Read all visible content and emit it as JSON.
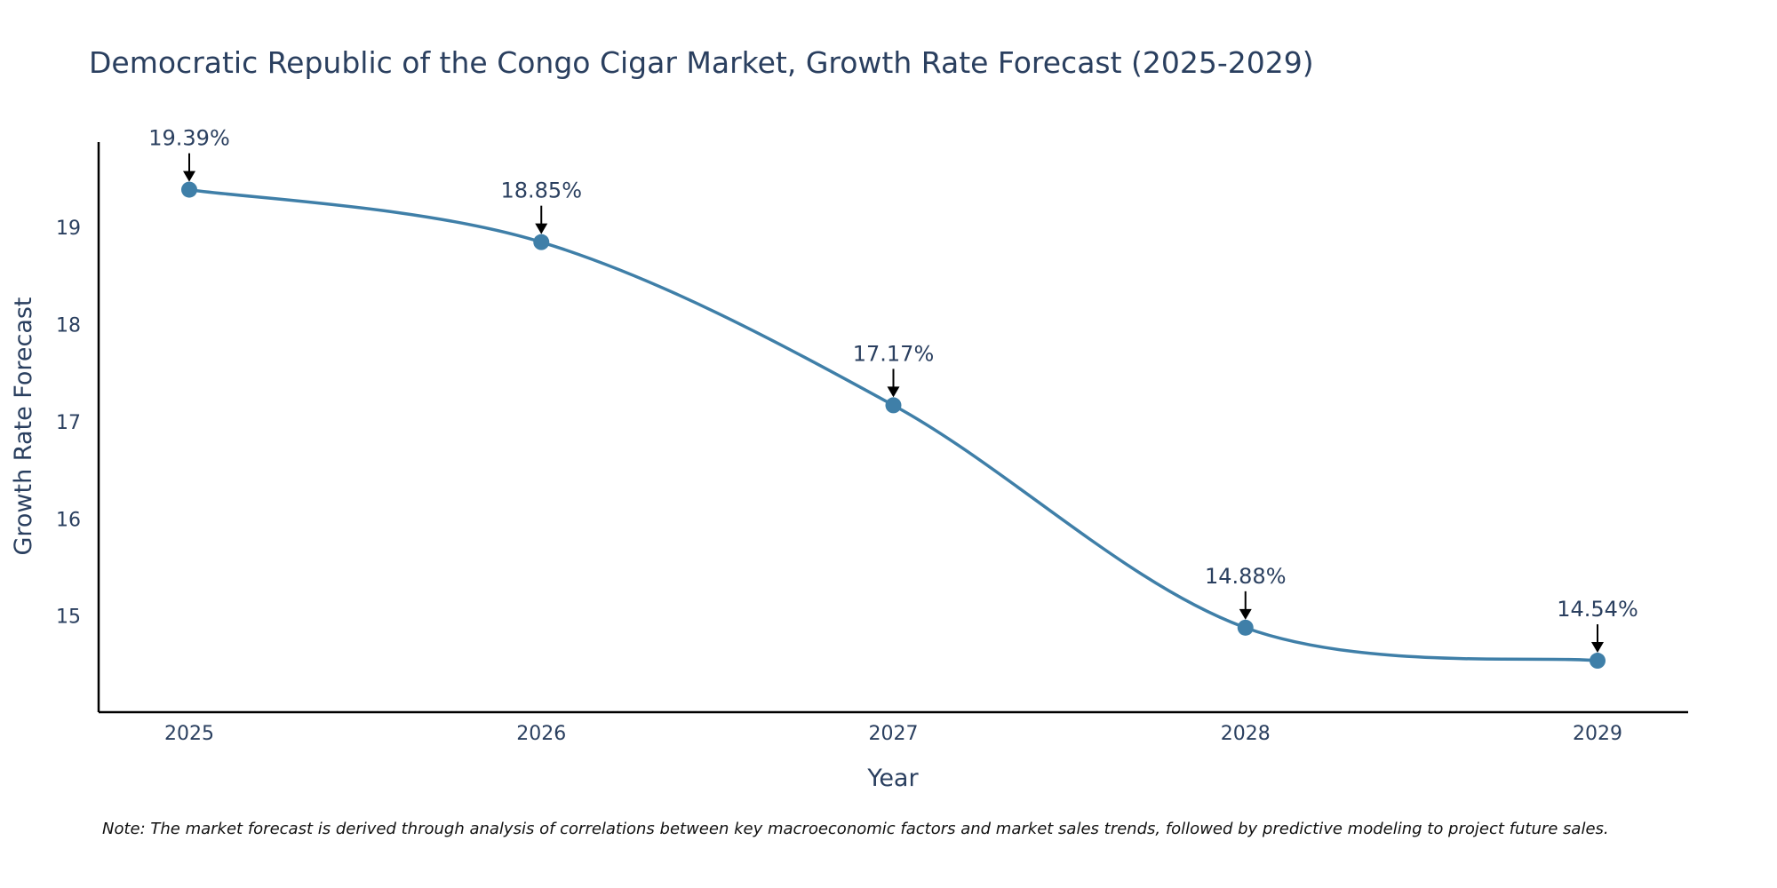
{
  "chart_data": {
    "type": "line",
    "title": "Democratic Republic of the Congo Cigar Market, Growth Rate Forecast (2025-2029)",
    "xlabel": "Year",
    "ylabel": "Growth Rate Forecast",
    "categories": [
      "2025",
      "2026",
      "2027",
      "2028",
      "2029"
    ],
    "series": [
      {
        "name": "Growth Rate Forecast",
        "values": [
          19.39,
          18.85,
          17.17,
          14.88,
          14.54
        ],
        "color": "#3f7fa8"
      }
    ],
    "data_labels": [
      "19.39%",
      "18.85%",
      "17.17%",
      "14.88%",
      "14.54%"
    ],
    "yticks": [
      15,
      16,
      17,
      18,
      19
    ],
    "ylim": [
      14.01,
      19.88
    ],
    "line_shape": "spline",
    "grid": false,
    "note": "Note: The market forecast is derived through analysis of correlations between key macroeconomic factors and market sales trends, followed by predictive modeling to project future sales."
  }
}
